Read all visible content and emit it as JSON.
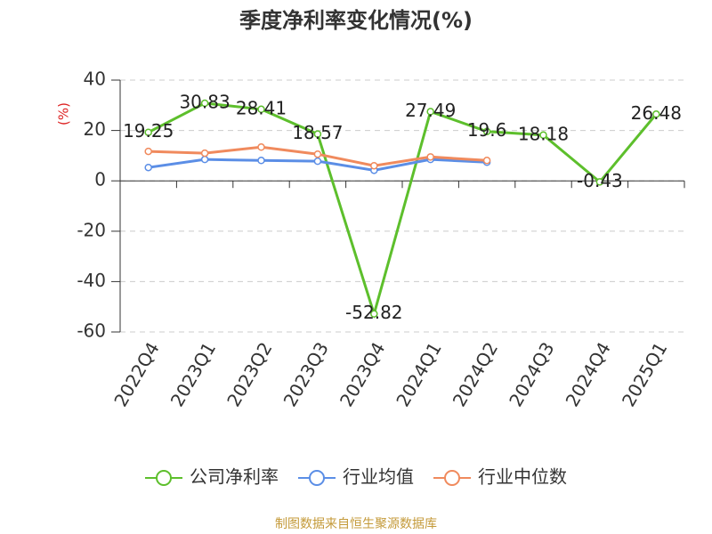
{
  "chart_data": {
    "type": "line",
    "title": "季度净利率变化情况(%)",
    "y_label": "(%)",
    "categories": [
      "2022Q4",
      "2023Q1",
      "2023Q2",
      "2023Q3",
      "2023Q4",
      "2024Q1",
      "2024Q2",
      "2024Q3",
      "2024Q4",
      "2025Q1"
    ],
    "series": [
      {
        "name": "公司净利率",
        "color": "#5dbf2c",
        "values": [
          19.25,
          30.83,
          28.41,
          18.57,
          -52.82,
          27.49,
          19.6,
          18.18,
          -0.43,
          26.48
        ],
        "show_labels": true
      },
      {
        "name": "行业均值",
        "color": "#5b8ee6",
        "values": [
          5.3,
          8.5,
          8.1,
          7.8,
          4.2,
          8.5,
          7.4,
          null,
          null,
          null
        ],
        "show_labels": false
      },
      {
        "name": "行业中位数",
        "color": "#f08a5d",
        "values": [
          11.7,
          11,
          13.4,
          10.6,
          6,
          9.5,
          8.1,
          null,
          null,
          null
        ],
        "show_labels": false
      }
    ],
    "ylim": [
      -60,
      40
    ],
    "yticks": [
      40,
      20,
      0,
      -20,
      -40,
      -60
    ],
    "grid": true,
    "source": "制图数据来自恒生聚源数据库"
  }
}
